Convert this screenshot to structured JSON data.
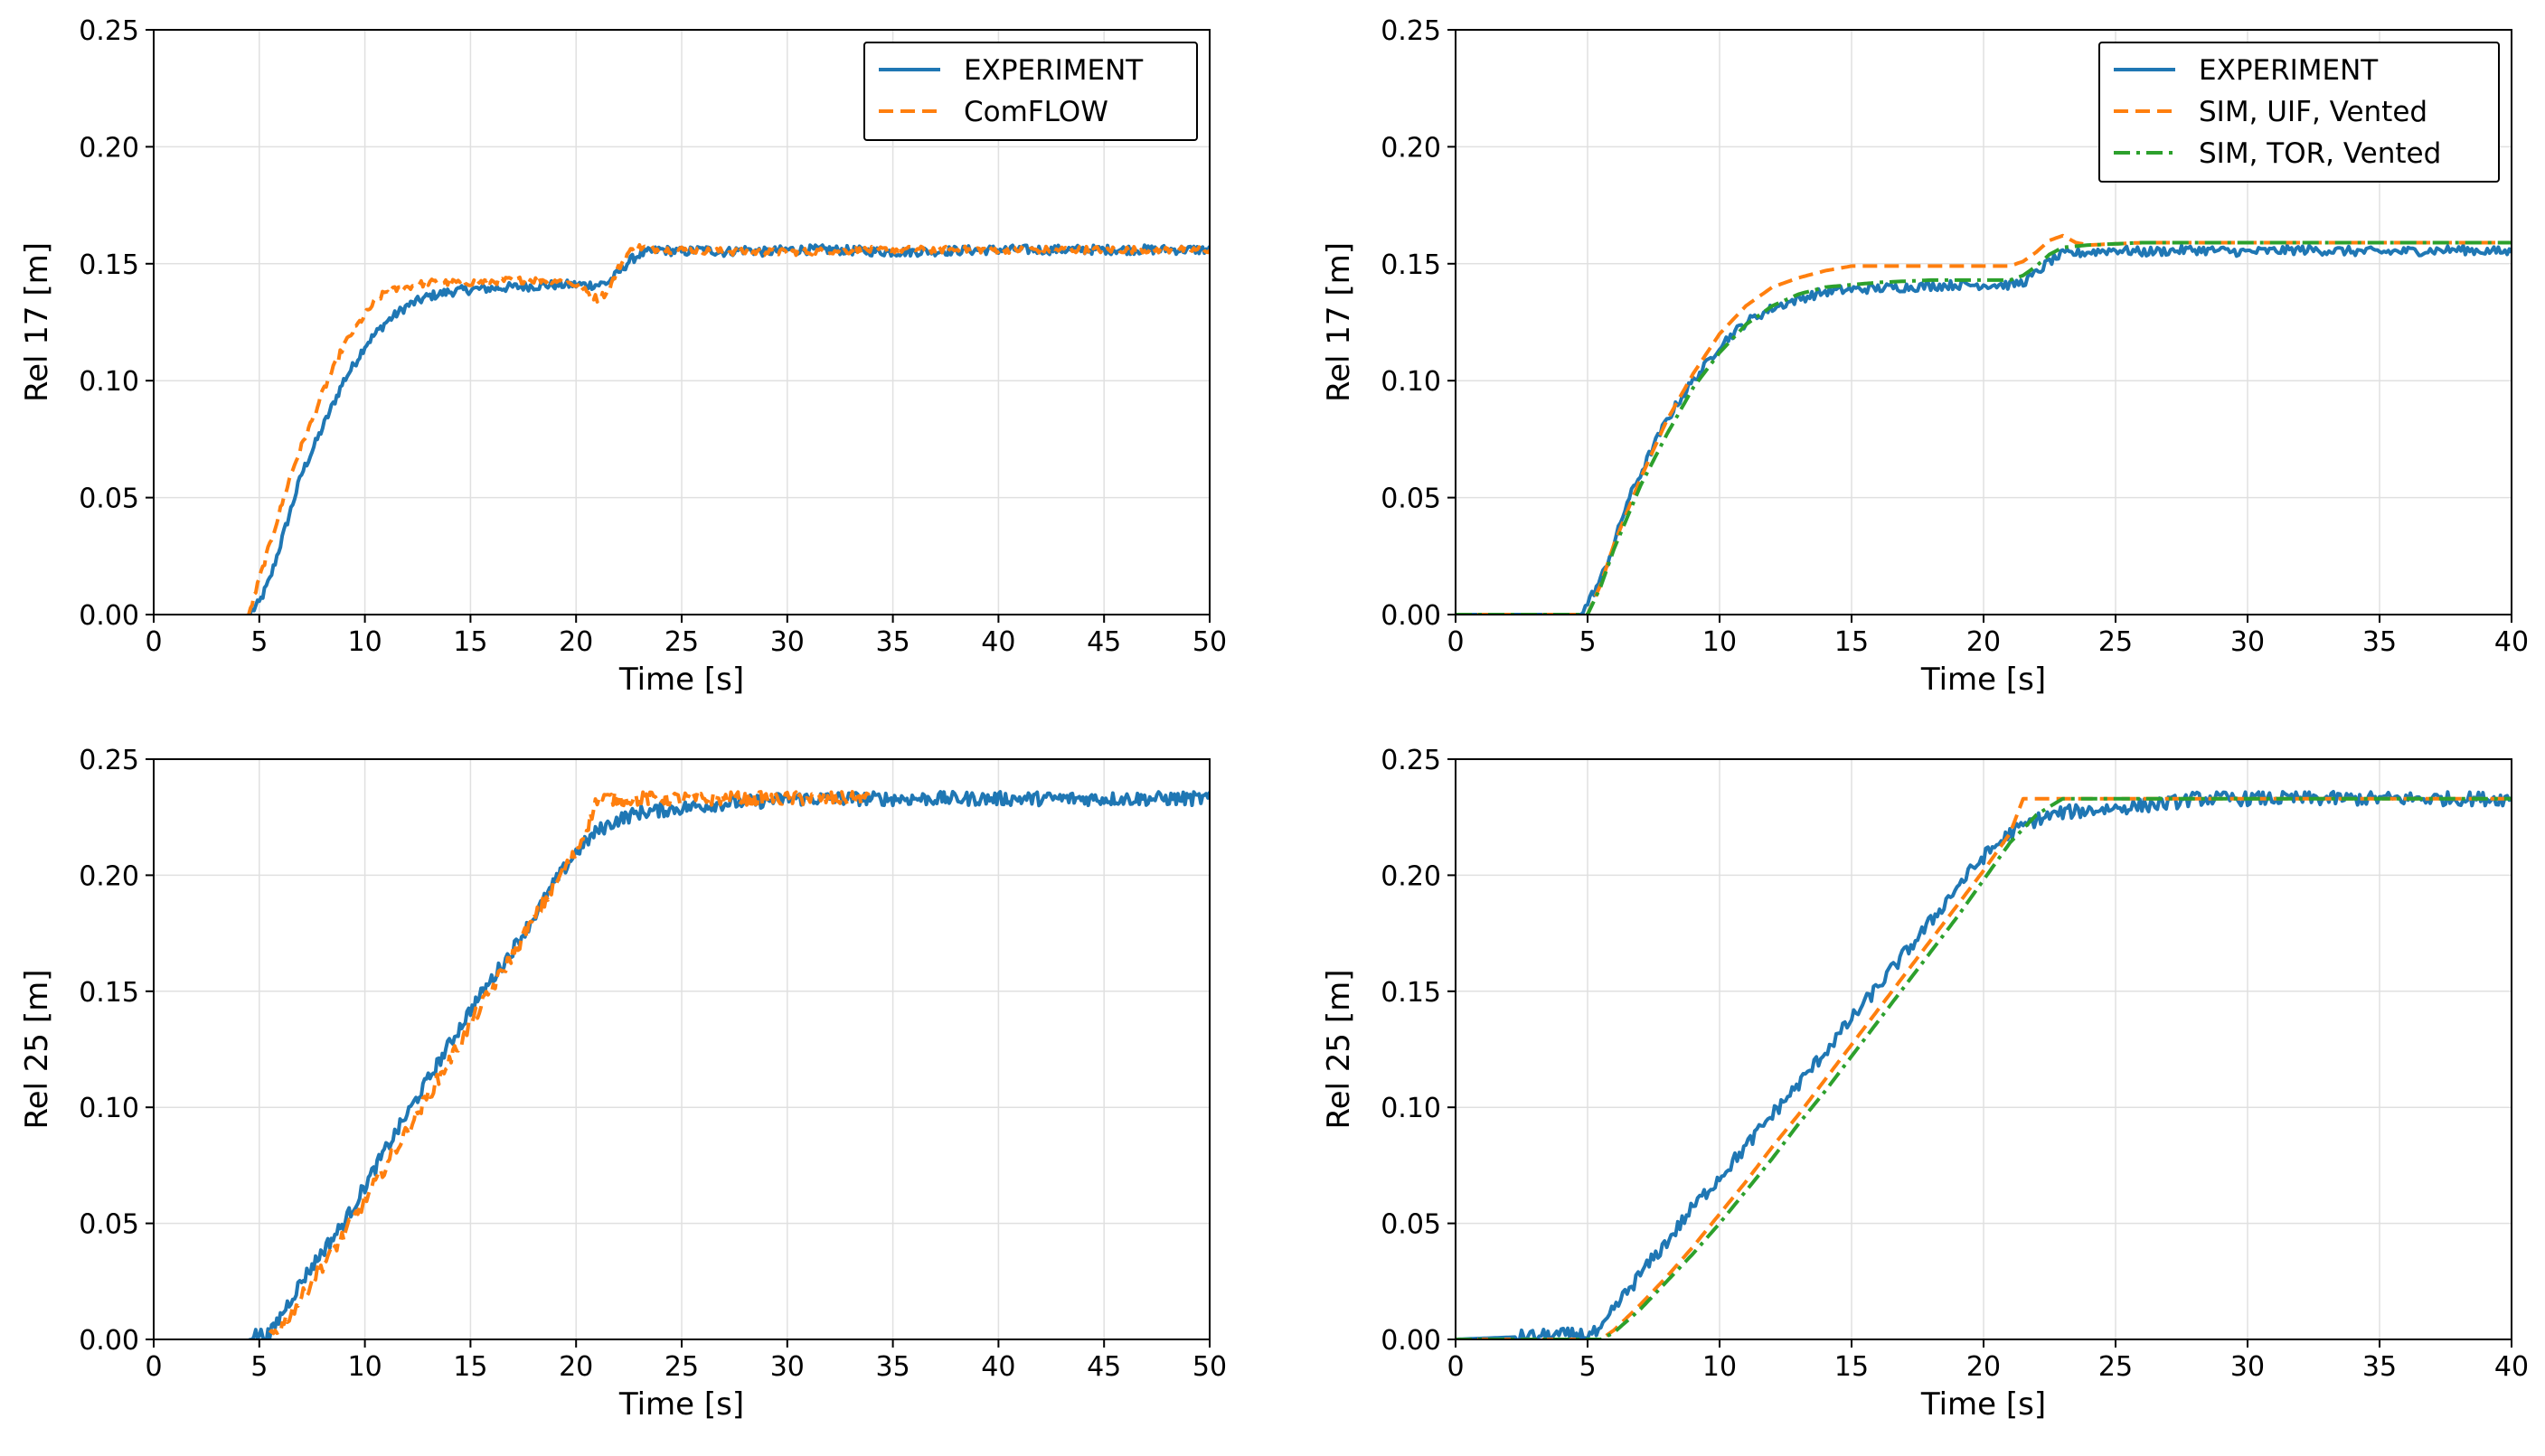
{
  "colors": {
    "experiment": "#1f77b4",
    "sim_orange": "#ff7f0e",
    "sim_green": "#2ca02c",
    "grid": "#e0e0e0"
  },
  "chart_data": [
    {
      "type": "line",
      "xlabel": "Time [s]",
      "ylabel": "Rel 17 [m]",
      "xlim": [
        0,
        50
      ],
      "ylim": [
        0,
        0.25
      ],
      "xticks": [
        0,
        5,
        10,
        15,
        20,
        25,
        30,
        35,
        40,
        45,
        50
      ],
      "yticks": [
        0.0,
        0.05,
        0.1,
        0.15,
        0.2,
        0.25
      ],
      "grid": true,
      "legend": "top-right",
      "series": [
        {
          "name": "EXPERIMENT",
          "style": "solid",
          "color": "#1f77b4",
          "noise": 0.002,
          "x": [
            4.5,
            5.0,
            5.5,
            6.0,
            6.5,
            7.0,
            7.5,
            8.0,
            8.5,
            9.0,
            9.5,
            10.0,
            11.0,
            12.0,
            13.0,
            14.0,
            15.0,
            17.0,
            19.0,
            20.0,
            21.0,
            21.5,
            22.0,
            22.5,
            23.0,
            24.0,
            25.0,
            26.0,
            27.0,
            28.0,
            29.0,
            30.0,
            32.0,
            35.0,
            40.0,
            45.0,
            50.0
          ],
          "y": [
            0.0,
            0.005,
            0.015,
            0.03,
            0.045,
            0.06,
            0.07,
            0.08,
            0.09,
            0.1,
            0.107,
            0.115,
            0.125,
            0.132,
            0.136,
            0.138,
            0.139,
            0.14,
            0.141,
            0.141,
            0.141,
            0.142,
            0.146,
            0.151,
            0.154,
            0.156,
            0.155,
            0.156,
            0.155,
            0.156,
            0.155,
            0.156,
            0.156,
            0.155,
            0.156,
            0.156,
            0.156
          ]
        },
        {
          "name": "ComFLOW",
          "style": "dashed",
          "color": "#ff7f0e",
          "noise": 0.0015,
          "x": [
            4.5,
            5.0,
            5.5,
            6.0,
            6.5,
            7.0,
            7.5,
            8.0,
            8.5,
            9.0,
            9.5,
            10.0,
            10.5,
            11.0,
            12.0,
            13.0,
            14.0,
            15.0,
            17.0,
            19.0,
            20.0,
            21.0,
            21.5,
            22.0,
            22.5,
            23.0,
            24.0,
            25.0,
            28.0,
            30.0,
            35.0,
            40.0,
            45.0,
            50.0
          ],
          "y": [
            0.0,
            0.015,
            0.03,
            0.045,
            0.06,
            0.072,
            0.083,
            0.095,
            0.105,
            0.115,
            0.122,
            0.128,
            0.134,
            0.138,
            0.14,
            0.142,
            0.142,
            0.142,
            0.143,
            0.143,
            0.141,
            0.135,
            0.138,
            0.148,
            0.155,
            0.157,
            0.156,
            0.156,
            0.155,
            0.155,
            0.156,
            0.156,
            0.156,
            0.156
          ]
        }
      ]
    },
    {
      "type": "line",
      "xlabel": "Time [s]",
      "ylabel": "Rel 17 [m]",
      "xlim": [
        0,
        40
      ],
      "ylim": [
        0,
        0.25
      ],
      "xticks": [
        0,
        5,
        10,
        15,
        20,
        25,
        30,
        35,
        40
      ],
      "yticks": [
        0.0,
        0.05,
        0.1,
        0.15,
        0.2,
        0.25
      ],
      "grid": true,
      "legend": "top-right",
      "series": [
        {
          "name": "EXPERIMENT",
          "style": "solid",
          "color": "#1f77b4",
          "noise": 0.002,
          "x": [
            0.0,
            4.8,
            5.0,
            5.5,
            6.0,
            6.5,
            7.0,
            7.5,
            8.0,
            8.5,
            9.0,
            9.5,
            10.0,
            11.0,
            12.0,
            13.0,
            14.0,
            15.0,
            17.0,
            19.0,
            20.0,
            21.0,
            21.5,
            22.0,
            22.5,
            23.0,
            24.0,
            25.0,
            26.0,
            28.0,
            30.0,
            32.0,
            35.0,
            38.0,
            40.0
          ],
          "y": [
            0.0,
            0.0,
            0.005,
            0.015,
            0.03,
            0.048,
            0.06,
            0.072,
            0.083,
            0.092,
            0.1,
            0.107,
            0.115,
            0.125,
            0.131,
            0.135,
            0.138,
            0.139,
            0.14,
            0.141,
            0.141,
            0.141,
            0.142,
            0.146,
            0.151,
            0.154,
            0.155,
            0.156,
            0.155,
            0.156,
            0.155,
            0.156,
            0.155,
            0.156,
            0.155
          ]
        },
        {
          "name": "SIM, UIF, Vented",
          "style": "dashed",
          "color": "#ff7f0e",
          "noise": 0,
          "x": [
            0.0,
            5.0,
            5.5,
            6.0,
            7.0,
            8.0,
            9.0,
            10.0,
            11.0,
            12.0,
            13.0,
            14.0,
            15.0,
            16.0,
            18.0,
            20.0,
            21.0,
            21.5,
            22.0,
            22.5,
            23.0,
            23.5,
            24.0,
            26.0,
            30.0,
            35.0,
            40.0
          ],
          "y": [
            0.0,
            0.0,
            0.013,
            0.03,
            0.058,
            0.083,
            0.103,
            0.12,
            0.132,
            0.14,
            0.144,
            0.147,
            0.149,
            0.149,
            0.149,
            0.149,
            0.149,
            0.151,
            0.155,
            0.16,
            0.162,
            0.159,
            0.158,
            0.159,
            0.159,
            0.159,
            0.159
          ]
        },
        {
          "name": "SIM, TOR, Vented",
          "style": "dashdot",
          "color": "#2ca02c",
          "noise": 0,
          "x": [
            0.0,
            5.0,
            5.5,
            6.0,
            7.0,
            8.0,
            9.0,
            10.0,
            11.0,
            12.0,
            13.0,
            14.0,
            15.0,
            16.0,
            18.0,
            20.0,
            21.0,
            21.5,
            22.0,
            22.5,
            23.0,
            24.0,
            26.0,
            30.0,
            35.0,
            40.0
          ],
          "y": [
            0.0,
            0.0,
            0.012,
            0.028,
            0.055,
            0.077,
            0.097,
            0.112,
            0.124,
            0.132,
            0.137,
            0.14,
            0.141,
            0.142,
            0.143,
            0.143,
            0.143,
            0.145,
            0.149,
            0.154,
            0.157,
            0.158,
            0.159,
            0.159,
            0.159,
            0.159
          ]
        }
      ]
    },
    {
      "type": "line",
      "xlabel": "Time [s]",
      "ylabel": "Rel 25 [m]",
      "xlim": [
        0,
        50
      ],
      "ylim": [
        0,
        0.25
      ],
      "xticks": [
        0,
        5,
        10,
        15,
        20,
        25,
        30,
        35,
        40,
        45,
        50
      ],
      "yticks": [
        0.0,
        0.05,
        0.1,
        0.15,
        0.2,
        0.25
      ],
      "grid": true,
      "series": [
        {
          "name": "EXPERIMENT",
          "style": "solid",
          "color": "#1f77b4",
          "noise": 0.003,
          "x": [
            4.5,
            5.5,
            6.0,
            7.0,
            8.0,
            9.0,
            10.0,
            11.0,
            12.0,
            13.0,
            14.0,
            15.0,
            16.0,
            17.0,
            18.0,
            19.0,
            20.0,
            21.0,
            22.0,
            23.0,
            25.0,
            27.0,
            29.0,
            30.0,
            35.0,
            40.0,
            45.0,
            50.0
          ],
          "y": [
            0.002,
            0.002,
            0.01,
            0.025,
            0.038,
            0.05,
            0.066,
            0.082,
            0.097,
            0.112,
            0.127,
            0.142,
            0.155,
            0.168,
            0.182,
            0.197,
            0.21,
            0.219,
            0.224,
            0.227,
            0.229,
            0.231,
            0.232,
            0.233,
            0.233,
            0.233,
            0.233,
            0.233
          ]
        },
        {
          "name": "ComFLOW",
          "style": "dashed",
          "color": "#ff7f0e",
          "noise": 0.003,
          "x": [
            5.5,
            6.0,
            7.0,
            8.0,
            9.0,
            10.0,
            11.0,
            12.0,
            13.0,
            14.0,
            15.0,
            16.0,
            17.0,
            18.0,
            19.0,
            20.0,
            20.5,
            21.0,
            22.0,
            25.0,
            28.0,
            30.0,
            34.0
          ],
          "y": [
            0.002,
            0.005,
            0.018,
            0.032,
            0.045,
            0.06,
            0.075,
            0.09,
            0.105,
            0.12,
            0.136,
            0.151,
            0.166,
            0.181,
            0.196,
            0.21,
            0.22,
            0.233,
            0.233,
            0.233,
            0.233,
            0.233,
            0.233
          ]
        }
      ]
    },
    {
      "type": "line",
      "xlabel": "Time [s]",
      "ylabel": "Rel 25 [m]",
      "xlim": [
        0,
        40
      ],
      "ylim": [
        0,
        0.25
      ],
      "xticks": [
        0,
        5,
        10,
        15,
        20,
        25,
        30,
        35,
        40
      ],
      "yticks": [
        0.0,
        0.05,
        0.1,
        0.15,
        0.2,
        0.25
      ],
      "grid": true,
      "series": [
        {
          "name": "EXPERIMENT",
          "style": "solid",
          "color": "#1f77b4",
          "noise": 0.003,
          "x": [
            0.0,
            4.5,
            5.0,
            5.5,
            6.0,
            7.0,
            8.0,
            9.0,
            10.0,
            11.0,
            12.0,
            13.0,
            14.0,
            15.0,
            16.0,
            17.0,
            18.0,
            19.0,
            20.0,
            21.0,
            22.0,
            23.0,
            25.0,
            27.0,
            28.0,
            30.0,
            35.0,
            40.0
          ],
          "y": [
            0.0,
            0.002,
            0.002,
            0.003,
            0.013,
            0.028,
            0.042,
            0.057,
            0.07,
            0.083,
            0.097,
            0.11,
            0.124,
            0.138,
            0.152,
            0.166,
            0.18,
            0.195,
            0.208,
            0.218,
            0.224,
            0.227,
            0.229,
            0.231,
            0.233,
            0.233,
            0.233,
            0.233
          ]
        },
        {
          "name": "SIM, UIF, Vented",
          "style": "dashed",
          "color": "#ff7f0e",
          "noise": 0,
          "x": [
            0.0,
            5.5,
            6.0,
            7.0,
            8.0,
            9.0,
            10.0,
            11.0,
            12.0,
            13.0,
            14.0,
            15.0,
            16.0,
            17.0,
            18.0,
            19.0,
            20.0,
            21.0,
            21.5,
            22.0,
            25.0,
            30.0,
            35.0,
            40.0
          ],
          "y": [
            0.0,
            0.0,
            0.004,
            0.015,
            0.027,
            0.04,
            0.054,
            0.068,
            0.083,
            0.097,
            0.112,
            0.127,
            0.142,
            0.157,
            0.172,
            0.187,
            0.202,
            0.218,
            0.233,
            0.233,
            0.233,
            0.233,
            0.233,
            0.233
          ]
        },
        {
          "name": "SIM, TOR, Vented",
          "style": "dashdot",
          "color": "#2ca02c",
          "noise": 0,
          "x": [
            0.0,
            5.5,
            6.0,
            7.0,
            8.0,
            9.0,
            10.0,
            11.0,
            12.0,
            13.0,
            14.0,
            15.0,
            16.0,
            17.0,
            18.0,
            19.0,
            20.0,
            21.0,
            22.0,
            23.0,
            25.0,
            30.0,
            35.0,
            40.0
          ],
          "y": [
            0.0,
            0.0,
            0.003,
            0.013,
            0.025,
            0.037,
            0.05,
            0.064,
            0.078,
            0.093,
            0.107,
            0.122,
            0.137,
            0.152,
            0.167,
            0.182,
            0.198,
            0.214,
            0.226,
            0.233,
            0.233,
            0.233,
            0.233,
            0.233
          ]
        }
      ]
    }
  ]
}
